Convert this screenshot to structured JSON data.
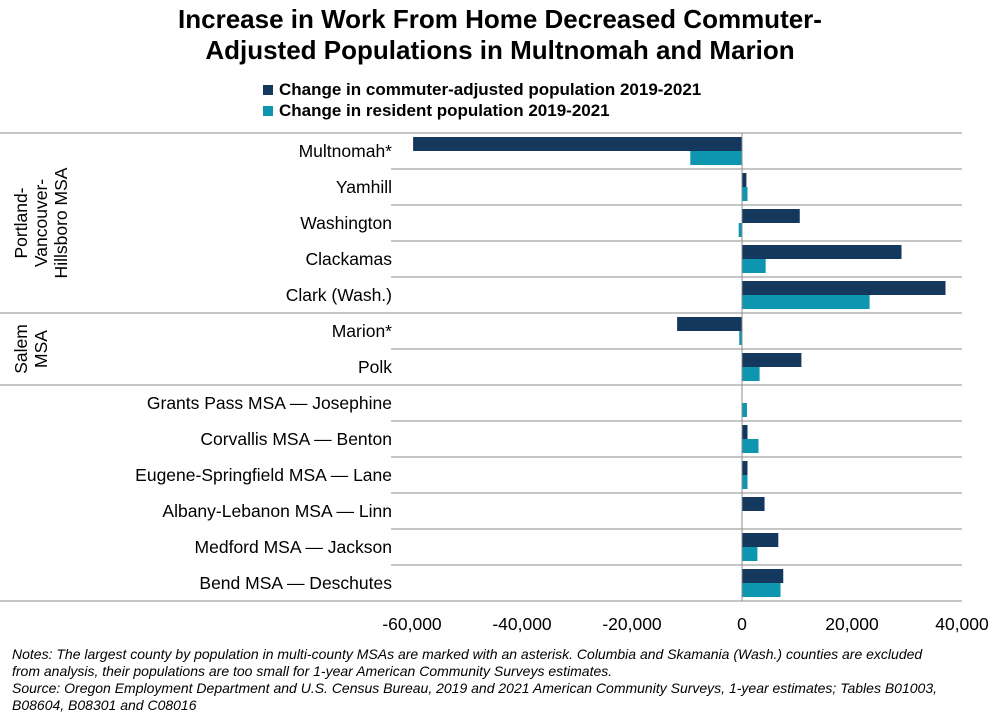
{
  "title_lines": [
    "Increase in Work From Home Decreased Commuter-",
    "Adjusted Populations in Multnomah and Marion"
  ],
  "notes_lines": [
    "Notes: The largest county by population in multi-county MSAs are marked with an asterisk. Columbia and Skamania (Wash.) counties are excluded",
    "from analysis, their populations are too small for 1-year American Community Surveys estimates.",
    "Source: Oregon Employment Department and U.S. Census Bureau, 2019 and 2021 American Community Surveys, 1-year estimates; Tables B01003,",
    "B08604, B08301 and C08016"
  ],
  "colors": {
    "commuter": "#14375e",
    "resident": "#0e95b0",
    "grid": "#8c8c8c"
  },
  "chart_data": {
    "type": "bar",
    "orientation": "horizontal",
    "title": "Increase in Work From Home Decreased Commuter-Adjusted Populations in Multnomah and Marion",
    "categories": [
      "Multnomah*",
      "Yamhill",
      "Washington",
      "Clackamas",
      "Clark (Wash.)",
      "Marion*",
      "Polk",
      "Grants Pass MSA — Josephine",
      "Corvallis MSA — Benton",
      "Eugene-Springfield MSA — Lane",
      "Albany-Lebanon MSA — Linn",
      "Medford MSA — Jackson",
      "Bend MSA — Deschutes"
    ],
    "groups": [
      {
        "label_lines": [
          "Portland-",
          "Vancouver-",
          "Hillsboro MSA"
        ],
        "start": 0,
        "end": 5
      },
      {
        "label_lines": [
          "Salem",
          "MSA"
        ],
        "start": 5,
        "end": 7
      }
    ],
    "series": [
      {
        "name": "Change in commuter-adjusted population 2019-2021",
        "values": [
          -59800,
          800,
          10500,
          29000,
          37000,
          -11800,
          10800,
          0,
          1000,
          1000,
          4100,
          6600,
          7500
        ]
      },
      {
        "name": "Change in resident population 2019-2021",
        "values": [
          -9400,
          1000,
          -600,
          4300,
          23200,
          -500,
          3200,
          900,
          3000,
          1000,
          0,
          2800,
          7000
        ]
      }
    ],
    "xlim": [
      -60000,
      40000
    ],
    "xticks": [
      -60000,
      -40000,
      -20000,
      0,
      20000,
      40000
    ],
    "xtick_labels": [
      "-60,000",
      "-40,000",
      "-20,000",
      "0",
      "20,000",
      "40,000"
    ],
    "xlabel": "",
    "ylabel": "",
    "legend_position": "top"
  }
}
